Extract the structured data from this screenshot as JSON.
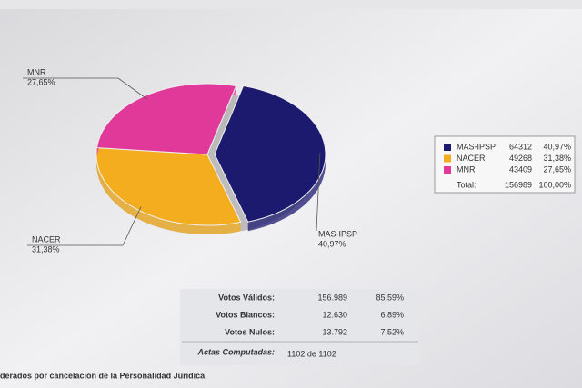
{
  "chart_data": {
    "type": "pie",
    "categories": [
      "MAS-IPSP",
      "NACER",
      "MNR"
    ],
    "values": [
      40.97,
      31.38,
      27.65
    ],
    "value_labels": [
      "40,97%",
      "31,38%",
      "27,65%"
    ],
    "colors": [
      "#1c1a6e",
      "#f3ad1f",
      "#e0399a"
    ]
  },
  "legend_table": {
    "votes": [
      "64312",
      "49268",
      "43409"
    ],
    "total_label": "Total:",
    "total_votes": "156989",
    "total_percent": "100,00%"
  },
  "stats_table": {
    "rows": [
      [
        "Votos Válidos:",
        "156.989",
        "85,59%"
      ],
      [
        "Votos Blancos:",
        "12.630",
        "6,89%"
      ],
      [
        "Votos Nulos:",
        "13.792",
        "7,52%"
      ]
    ],
    "footer": [
      "Actas Computadas:",
      "1102 de 1102"
    ]
  },
  "footnote": "derados por cancelación de la Personalidad Jurídica"
}
